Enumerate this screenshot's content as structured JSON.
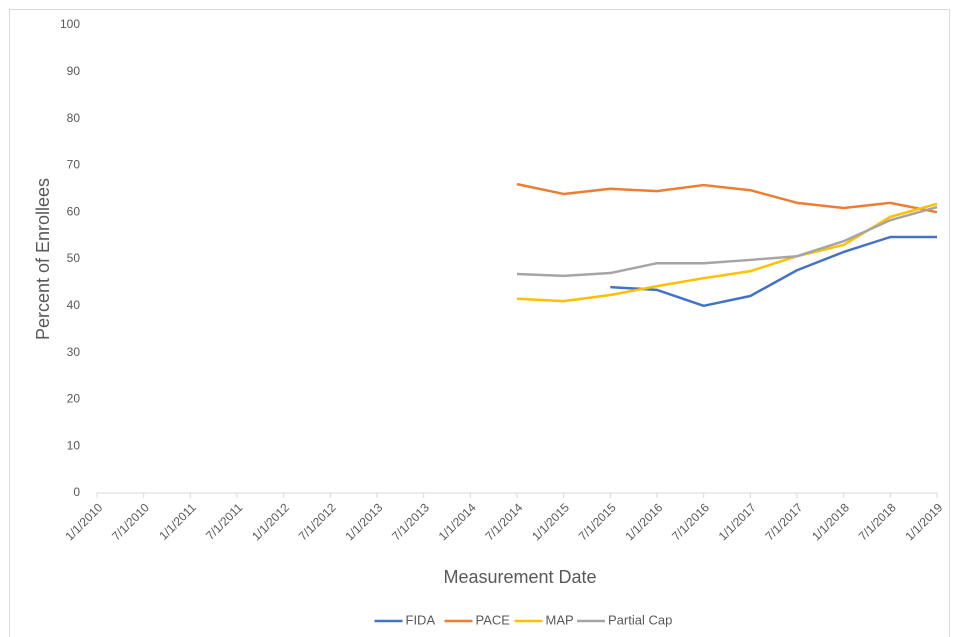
{
  "chart_data": {
    "type": "line",
    "x_label": "Measurement Date",
    "y_label": "Percent of Enrollees",
    "categories": [
      "1/1/2010",
      "7/1/2010",
      "1/1/2011",
      "7/1/2011",
      "1/1/2012",
      "7/1/2012",
      "1/1/2013",
      "7/1/2013",
      "1/1/2014",
      "7/1/2014",
      "1/1/2015",
      "7/1/2015",
      "1/1/2016",
      "7/1/2016",
      "1/1/2017",
      "7/1/2017",
      "1/1/2018",
      "7/1/2018",
      "1/1/2019"
    ],
    "series": [
      {
        "name": "FIDA",
        "color": "#4472c4",
        "values": [
          null,
          null,
          null,
          null,
          null,
          null,
          null,
          null,
          null,
          null,
          null,
          44.0,
          43.4,
          40.0,
          42.1,
          47.6,
          51.5,
          54.7,
          54.7
        ]
      },
      {
        "name": "PACE",
        "color": "#ed7d31",
        "values": [
          null,
          null,
          null,
          null,
          null,
          null,
          null,
          null,
          null,
          66.0,
          63.9,
          65.0,
          64.5,
          65.8,
          64.7,
          62.0,
          60.9,
          62.0,
          60.0
        ]
      },
      {
        "name": "MAP",
        "color": "#ffc000",
        "values": [
          null,
          null,
          null,
          null,
          null,
          null,
          null,
          null,
          null,
          41.5,
          41.0,
          42.3,
          44.2,
          45.9,
          47.4,
          50.6,
          53.0,
          59.0,
          61.8
        ]
      },
      {
        "name": "Partial Cap",
        "color": "#a5a5a5",
        "values": [
          null,
          null,
          null,
          null,
          null,
          null,
          null,
          null,
          null,
          46.8,
          46.4,
          47.0,
          49.1,
          49.1,
          49.8,
          50.6,
          53.8,
          58.3,
          61.1
        ]
      }
    ],
    "ylim": [
      0,
      100
    ],
    "yticks": [
      0,
      10,
      20,
      30,
      40,
      50,
      60,
      70,
      80,
      90,
      100
    ],
    "legend": "bottom"
  }
}
